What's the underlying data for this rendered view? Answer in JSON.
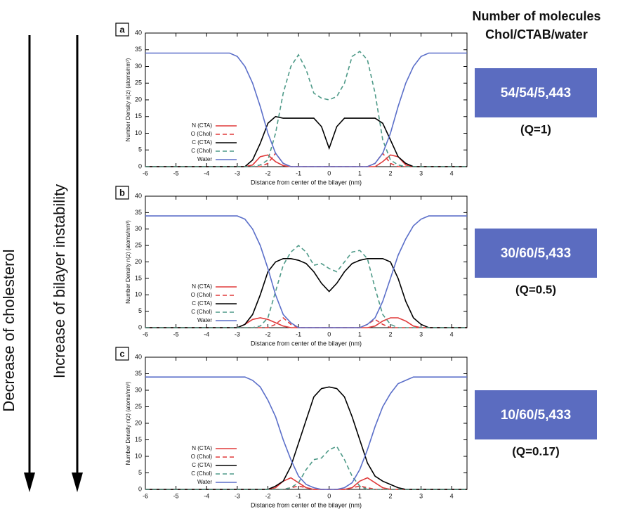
{
  "chart_data": [
    {
      "type": "line",
      "panel": "a",
      "xlabel": "Distance from center of the bilayer (nm)",
      "ylabel": "Number Density n(z) (atoms/nm³)",
      "xlim": [
        -6,
        4.5
      ],
      "xticks": [
        -6,
        -5,
        -4,
        -3,
        -2,
        -1,
        0,
        1,
        2,
        3,
        4
      ],
      "ylim": [
        0,
        40
      ],
      "yticks": [
        0,
        5,
        10,
        15,
        20,
        25,
        30,
        35,
        40
      ],
      "x": [
        -6,
        -5.75,
        -5.5,
        -5.25,
        -5,
        -4.75,
        -4.5,
        -4.25,
        -4,
        -3.75,
        -3.5,
        -3.25,
        -3,
        -2.75,
        -2.5,
        -2.25,
        -2,
        -1.75,
        -1.5,
        -1.25,
        -1,
        -0.75,
        -0.5,
        -0.25,
        0,
        0.25,
        0.5,
        0.75,
        1,
        1.25,
        1.5,
        1.75,
        2,
        2.25,
        2.5,
        2.75,
        3,
        3.25,
        3.5,
        3.75,
        4,
        4.25,
        4.5
      ],
      "series": [
        {
          "name": "N (CTA)",
          "color": "#e03a3a",
          "dashed": false,
          "values": [
            0,
            0,
            0,
            0,
            0,
            0,
            0,
            0,
            0,
            0,
            0,
            0,
            0,
            0,
            0.5,
            3,
            3.5,
            1.5,
            0.3,
            0,
            0,
            0,
            0,
            0,
            0,
            0,
            0,
            0,
            0,
            0,
            0,
            1.5,
            3.5,
            3,
            0.5,
            0,
            0,
            0,
            0,
            0,
            0,
            0,
            0
          ]
        },
        {
          "name": "O (Chol)",
          "color": "#e03a3a",
          "dashed": true,
          "values": [
            0,
            0,
            0,
            0,
            0,
            0,
            0,
            0,
            0,
            0,
            0,
            0,
            0,
            0,
            0,
            0,
            1,
            4,
            1,
            0,
            0,
            0,
            0,
            0,
            0,
            0,
            0,
            0,
            0,
            0,
            1,
            4,
            1,
            0,
            0,
            0,
            0,
            0,
            0,
            0,
            0,
            0,
            0
          ]
        },
        {
          "name": "C (CTA)",
          "color": "#000000",
          "dashed": false,
          "values": [
            0,
            0,
            0,
            0,
            0,
            0,
            0,
            0,
            0,
            0,
            0,
            0,
            0,
            0,
            2,
            7,
            13,
            15,
            14.5,
            14.5,
            14.5,
            14.5,
            14.5,
            12,
            5.5,
            12,
            14.5,
            14.5,
            14.5,
            14.5,
            14.5,
            13,
            8,
            3,
            1,
            0,
            0,
            0,
            0,
            0,
            0,
            0,
            0
          ]
        },
        {
          "name": "C (Chol)",
          "color": "#4e9a88",
          "dashed": true,
          "values": [
            0,
            0,
            0,
            0,
            0,
            0,
            0,
            0,
            0,
            0,
            0,
            0,
            0,
            0,
            0,
            0.5,
            2,
            10,
            22,
            30,
            33.5,
            29,
            22,
            20.5,
            20,
            21,
            25,
            33,
            34.5,
            32,
            22,
            8,
            2,
            0.5,
            0,
            0,
            0,
            0,
            0,
            0,
            0,
            0,
            0
          ]
        },
        {
          "name": "Water",
          "color": "#5b6fc9",
          "dashed": false,
          "values": [
            34,
            34,
            34,
            34,
            34,
            34,
            34,
            34,
            34,
            34,
            34,
            34,
            33,
            30,
            25,
            18,
            10,
            4,
            1,
            0,
            0,
            0,
            0,
            0,
            0,
            0,
            0,
            0,
            0,
            0,
            1,
            4,
            10,
            18,
            25,
            30,
            33,
            34,
            34,
            34,
            34,
            34,
            34
          ]
        }
      ]
    },
    {
      "type": "line",
      "panel": "b",
      "xlabel": "Distance from center of the bilayer (nm)",
      "ylabel": "Number Density n(z) (atoms/nm³)",
      "xlim": [
        -6,
        4.5
      ],
      "xticks": [
        -6,
        -5,
        -4,
        -3,
        -2,
        -1,
        0,
        1,
        2,
        3,
        4
      ],
      "ylim": [
        0,
        40
      ],
      "yticks": [
        0,
        5,
        10,
        15,
        20,
        25,
        30,
        35,
        40
      ],
      "x": [
        -6,
        -5.75,
        -5.5,
        -5.25,
        -5,
        -4.75,
        -4.5,
        -4.25,
        -4,
        -3.75,
        -3.5,
        -3.25,
        -3,
        -2.75,
        -2.5,
        -2.25,
        -2,
        -1.75,
        -1.5,
        -1.25,
        -1,
        -0.75,
        -0.5,
        -0.25,
        0,
        0.25,
        0.5,
        0.75,
        1,
        1.25,
        1.5,
        1.75,
        2,
        2.25,
        2.5,
        2.75,
        3,
        3.25,
        3.5,
        3.75,
        4,
        4.25,
        4.5
      ],
      "series": [
        {
          "name": "N (CTA)",
          "color": "#e03a3a",
          "dashed": false,
          "values": [
            0,
            0,
            0,
            0,
            0,
            0,
            0,
            0,
            0,
            0,
            0,
            0,
            0,
            1,
            2.5,
            3,
            2.5,
            1.5,
            0.5,
            0,
            0,
            0,
            0,
            0,
            0,
            0,
            0,
            0,
            0,
            0,
            0.5,
            2,
            3,
            3,
            2,
            0.5,
            0,
            0,
            0,
            0,
            0,
            0,
            0
          ]
        },
        {
          "name": "O (Chol)",
          "color": "#e03a3a",
          "dashed": true,
          "values": [
            0,
            0,
            0,
            0,
            0,
            0,
            0,
            0,
            0,
            0,
            0,
            0,
            0,
            0,
            0,
            0,
            0,
            1,
            3,
            1,
            0,
            0,
            0,
            0,
            0,
            0,
            0,
            0,
            0,
            1,
            2.5,
            1,
            0,
            0,
            0,
            0,
            0,
            0,
            0,
            0,
            0,
            0,
            0
          ]
        },
        {
          "name": "C (CTA)",
          "color": "#000000",
          "dashed": false,
          "values": [
            0,
            0,
            0,
            0,
            0,
            0,
            0,
            0,
            0,
            0,
            0,
            0,
            0,
            1,
            4,
            10,
            17,
            20,
            21,
            21,
            20.5,
            19.5,
            17,
            13.5,
            11,
            13.5,
            17,
            19.5,
            20.5,
            21,
            21,
            21,
            20,
            15,
            8,
            3,
            1,
            0,
            0,
            0,
            0,
            0,
            0
          ]
        },
        {
          "name": "C (Chol)",
          "color": "#4e9a88",
          "dashed": true,
          "values": [
            0,
            0,
            0,
            0,
            0,
            0,
            0,
            0,
            0,
            0,
            0,
            0,
            0,
            0,
            0,
            0.5,
            3,
            11,
            19,
            23,
            25,
            23,
            19,
            19.5,
            18,
            17,
            20,
            23,
            23.5,
            21,
            12,
            4,
            1,
            0,
            0,
            0,
            0,
            0,
            0,
            0,
            0,
            0,
            0
          ]
        },
        {
          "name": "Water",
          "color": "#5b6fc9",
          "dashed": false,
          "values": [
            34,
            34,
            34,
            34,
            34,
            34,
            34,
            34,
            34,
            34,
            34,
            34,
            34,
            33,
            30,
            25,
            18,
            10,
            4,
            1.5,
            0,
            0,
            0,
            0,
            0,
            0,
            0,
            0,
            0,
            1,
            3,
            8,
            15,
            22,
            27,
            31,
            33,
            34,
            34,
            34,
            34,
            34,
            34
          ]
        }
      ]
    },
    {
      "type": "line",
      "panel": "c",
      "xlabel": "Distance from center of the bilayer (nm)",
      "ylabel": "Number Density n(z) (atoms/nm³)",
      "xlim": [
        -6,
        4.5
      ],
      "xticks": [
        -6,
        -5,
        -4,
        -3,
        -2,
        -1,
        0,
        1,
        2,
        3,
        4
      ],
      "ylim": [
        0,
        40
      ],
      "yticks": [
        0,
        5,
        10,
        15,
        20,
        25,
        30,
        35,
        40
      ],
      "x": [
        -6,
        -5.75,
        -5.5,
        -5.25,
        -5,
        -4.75,
        -4.5,
        -4.25,
        -4,
        -3.75,
        -3.5,
        -3.25,
        -3,
        -2.75,
        -2.5,
        -2.25,
        -2,
        -1.75,
        -1.5,
        -1.25,
        -1,
        -0.75,
        -0.5,
        -0.25,
        0,
        0.25,
        0.5,
        0.75,
        1,
        1.25,
        1.5,
        1.75,
        2,
        2.25,
        2.5,
        2.75,
        3,
        3.25,
        3.5,
        3.75,
        4,
        4.25,
        4.5
      ],
      "series": [
        {
          "name": "N (CTA)",
          "color": "#e03a3a",
          "dashed": false,
          "values": [
            0,
            0,
            0,
            0,
            0,
            0,
            0,
            0,
            0,
            0,
            0,
            0,
            0,
            0,
            0,
            0,
            0,
            0.5,
            2.5,
            3.5,
            2,
            0.5,
            0,
            0,
            0,
            0,
            0,
            0.5,
            2.5,
            3.5,
            2,
            0.5,
            0,
            0,
            0,
            0,
            0,
            0,
            0,
            0,
            0,
            0,
            0
          ]
        },
        {
          "name": "O (Chol)",
          "color": "#e03a3a",
          "dashed": true,
          "values": [
            0,
            0,
            0,
            0,
            0,
            0,
            0,
            0,
            0,
            0,
            0,
            0,
            0,
            0,
            0,
            0,
            0,
            0,
            0,
            0.5,
            1,
            0.5,
            0,
            0,
            0,
            0,
            0,
            0.5,
            1,
            0.5,
            0,
            0,
            0,
            0,
            0,
            0,
            0,
            0,
            0,
            0,
            0,
            0,
            0
          ]
        },
        {
          "name": "C (CTA)",
          "color": "#000000",
          "dashed": false,
          "values": [
            0,
            0,
            0,
            0,
            0,
            0,
            0,
            0,
            0,
            0,
            0,
            0,
            0,
            0,
            0,
            0,
            0,
            1,
            2.5,
            7,
            14,
            21,
            28,
            30.5,
            31,
            30.5,
            28,
            22,
            15,
            8,
            4,
            2.5,
            1.5,
            0.5,
            0,
            0,
            0,
            0,
            0,
            0,
            0,
            0,
            0
          ]
        },
        {
          "name": "C (Chol)",
          "color": "#4e9a88",
          "dashed": true,
          "values": [
            0,
            0,
            0,
            0,
            0,
            0,
            0,
            0,
            0,
            0,
            0,
            0,
            0,
            0,
            0,
            0,
            0,
            0,
            0,
            0.5,
            2,
            6,
            9,
            9.5,
            12,
            13,
            9,
            4,
            1,
            0,
            0,
            0,
            0,
            0,
            0,
            0,
            0,
            0,
            0,
            0,
            0,
            0,
            0
          ]
        },
        {
          "name": "Water",
          "color": "#5b6fc9",
          "dashed": false,
          "values": [
            34,
            34,
            34,
            34,
            34,
            34,
            34,
            34,
            34,
            34,
            34,
            34,
            34,
            34,
            33,
            31,
            27,
            22,
            15,
            9,
            4,
            1.5,
            0.5,
            0,
            0,
            0,
            0.5,
            2,
            6,
            12,
            19,
            25,
            29,
            32,
            33,
            34,
            34,
            34,
            34,
            34,
            34,
            34,
            34
          ]
        }
      ]
    }
  ],
  "left_arrows": [
    "Decrease of cholesterol",
    "Increase of bilayer instability"
  ],
  "right_panel": {
    "header": [
      "Number of molecules",
      "Chol/CTAB/water"
    ],
    "boxes": [
      {
        "label": "54/54/5,443",
        "q": "(Q=1)"
      },
      {
        "label": "30/60/5,433",
        "q": "(Q=0.5)"
      },
      {
        "label": "10/60/5,433",
        "q": "(Q=0.17)"
      }
    ]
  }
}
